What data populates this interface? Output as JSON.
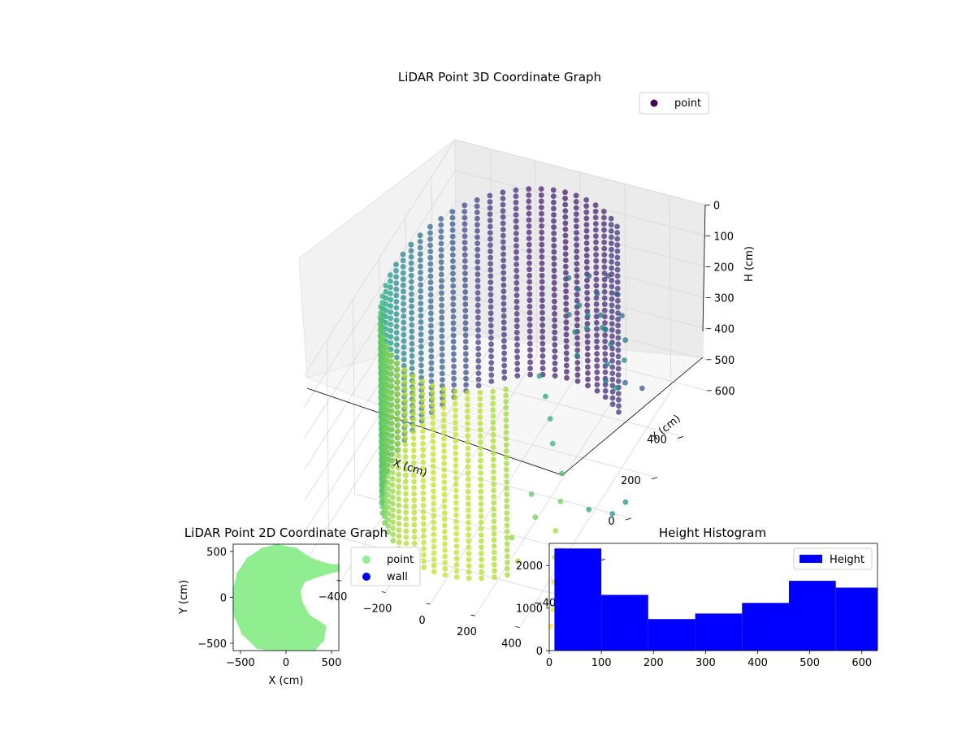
{
  "figure": {
    "background": "#ffffff"
  },
  "chart_data": [
    {
      "type": "scatter",
      "projection": "3d",
      "title": "LiDAR Point 3D Coordinate Graph",
      "xlabel": "X (cm)",
      "ylabel": "Y (cm)",
      "zlabel": "H (cm)",
      "xlim": [
        -560,
        560
      ],
      "ylim": [
        -580,
        580
      ],
      "zlim": [
        630,
        0
      ],
      "z_axis_inverted": true,
      "xticks": [
        -400,
        -200,
        0,
        200,
        400
      ],
      "yticks": [
        -400,
        -200,
        0,
        200,
        400
      ],
      "zticks": [
        0,
        100,
        200,
        300,
        400,
        500,
        600
      ],
      "colormap": "viridis",
      "color_by": "Y",
      "grid": true,
      "legend_position": "upper-right",
      "legend": [
        "point"
      ],
      "legend_color": "#440154",
      "series": [
        {
          "name": "point",
          "shape": "partial cylindrical wall of radius about 480 cm spanning heights 0 to 600 cm, open toward +X, with scattered returns on the ceiling",
          "wall_points": {
            "radius": 480,
            "angle_deg": [
              55,
              305
            ],
            "angle_step_deg": 6,
            "heights": [
              0,
              600
            ],
            "height_step": 20
          },
          "points": [
            {
              "x": 200,
              "y": 150,
              "h": 20
            },
            {
              "x": 260,
              "y": 120,
              "h": 25
            },
            {
              "x": 300,
              "y": 60,
              "h": 30
            },
            {
              "x": 350,
              "y": 40,
              "h": 40
            },
            {
              "x": 380,
              "y": -20,
              "h": 35
            },
            {
              "x": 420,
              "y": 30,
              "h": 60
            },
            {
              "x": 250,
              "y": 220,
              "h": 50
            },
            {
              "x": 310,
              "y": 180,
              "h": 70
            },
            {
              "x": 360,
              "y": 120,
              "h": 90
            },
            {
              "x": 400,
              "y": 90,
              "h": 110
            },
            {
              "x": 440,
              "y": 60,
              "h": 130
            },
            {
              "x": 460,
              "y": 0,
              "h": 150
            },
            {
              "x": 230,
              "y": 100,
              "h": 100
            },
            {
              "x": 280,
              "y": 60,
              "h": 120
            },
            {
              "x": 330,
              "y": -10,
              "h": 140
            },
            {
              "x": 300,
              "y": 280,
              "h": 80
            },
            {
              "x": 360,
              "y": 240,
              "h": 100
            },
            {
              "x": 420,
              "y": 180,
              "h": 120
            },
            {
              "x": 470,
              "y": 120,
              "h": 150
            },
            {
              "x": 500,
              "y": 60,
              "h": 170
            },
            {
              "x": 520,
              "y": -40,
              "h": 190
            },
            {
              "x": 190,
              "y": -60,
              "h": 200
            },
            {
              "x": 240,
              "y": -100,
              "h": 230
            },
            {
              "x": 290,
              "y": -150,
              "h": 260
            },
            {
              "x": 330,
              "y": -200,
              "h": 300
            },
            {
              "x": 400,
              "y": -250,
              "h": 350
            },
            {
              "x": 440,
              "y": -330,
              "h": 380
            },
            {
              "x": 470,
              "y": -420,
              "h": 410
            },
            {
              "x": 500,
              "y": -480,
              "h": 450
            },
            {
              "x": 520,
              "y": -520,
              "h": 500
            },
            {
              "x": 540,
              "y": -560,
              "h": 560
            },
            {
              "x": 540,
              "y": -580,
              "h": 600
            },
            {
              "x": 280,
              "y": -280,
              "h": 420
            },
            {
              "x": 320,
              "y": -320,
              "h": 460
            },
            {
              "x": 250,
              "y": -380,
              "h": 500
            },
            {
              "x": 300,
              "y": -420,
              "h": 540
            },
            {
              "x": 430,
              "y": -100,
              "h": 560
            },
            {
              "x": 500,
              "y": -40,
              "h": 600
            },
            {
              "x": 530,
              "y": 10,
              "h": 590
            },
            {
              "x": 380,
              "y": 120,
              "h": 300
            },
            {
              "x": 420,
              "y": 200,
              "h": 350
            },
            {
              "x": 460,
              "y": 260,
              "h": 400
            }
          ]
        }
      ]
    },
    {
      "type": "scatter",
      "title": "LiDAR Point 2D Coordinate Graph",
      "xlabel": "X (cm)",
      "ylabel": "Y (cm)",
      "xlim": [
        -580,
        580
      ],
      "ylim": [
        -580,
        580
      ],
      "xticks": [
        -500,
        0,
        500
      ],
      "yticks": [
        -500,
        0,
        500
      ],
      "legend_position": "outside-right",
      "series": [
        {
          "name": "point",
          "color": "#90ee90",
          "shape": "filled disc of radius about 530 cm centred near the origin with a notch open toward +X",
          "points": [
            {
              "x": -560,
              "y": 0
            },
            {
              "x": -500,
              "y": 250
            },
            {
              "x": -400,
              "y": 400
            },
            {
              "x": -250,
              "y": 500
            },
            {
              "x": -100,
              "y": 540
            },
            {
              "x": 100,
              "y": 500
            },
            {
              "x": 250,
              "y": 400
            },
            {
              "x": 350,
              "y": 360
            },
            {
              "x": 500,
              "y": 320
            },
            {
              "x": 560,
              "y": 320
            },
            {
              "x": 400,
              "y": 280
            },
            {
              "x": 180,
              "y": 200
            },
            {
              "x": 120,
              "y": 80
            },
            {
              "x": 140,
              "y": -60
            },
            {
              "x": 230,
              "y": -220
            },
            {
              "x": 400,
              "y": -330
            },
            {
              "x": 380,
              "y": -450
            },
            {
              "x": 300,
              "y": -540
            },
            {
              "x": 150,
              "y": -560
            },
            {
              "x": -100,
              "y": -560
            },
            {
              "x": -300,
              "y": -520
            },
            {
              "x": -450,
              "y": -380
            },
            {
              "x": -530,
              "y": -200
            }
          ]
        },
        {
          "name": "wall",
          "color": "#0000ff",
          "points": []
        }
      ]
    },
    {
      "type": "bar",
      "histogram": true,
      "title": "Height Histogram",
      "xlabel": "",
      "ylabel": "",
      "color": "#0000ff",
      "xlim": [
        0,
        630
      ],
      "ylim": [
        0,
        2520
      ],
      "xticks": [
        0,
        100,
        200,
        300,
        400,
        500,
        600
      ],
      "yticks": [
        0,
        1000,
        2000
      ],
      "bin_edges": [
        10,
        100,
        190,
        280,
        370,
        460,
        550,
        630
      ],
      "values": [
        2400,
        1310,
        740,
        870,
        1120,
        1640,
        1480
      ],
      "legend_position": "upper-right",
      "series": [
        {
          "name": "Height",
          "values": [
            2400,
            1310,
            740,
            870,
            1120,
            1640,
            1480
          ]
        }
      ]
    }
  ]
}
